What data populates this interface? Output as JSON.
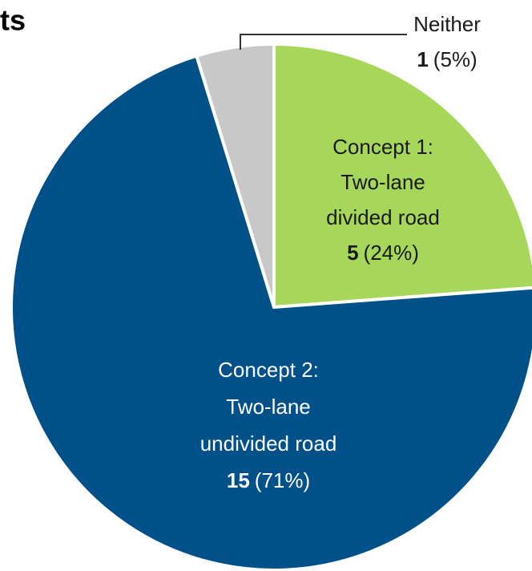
{
  "chart_data": {
    "type": "pie",
    "title": "ts",
    "categories": [
      [
        "Concept 1:",
        "Two-lane",
        "divided road"
      ],
      [
        "Concept 2:",
        "Two-lane",
        "undivided road"
      ],
      [
        "Neither"
      ]
    ],
    "values": [
      5,
      15,
      1
    ],
    "percent_labels": [
      "(24%)",
      "(71%)",
      "(5%)"
    ],
    "colors": [
      "#a6d75b",
      "#00508a",
      "#c8c8c8"
    ]
  }
}
